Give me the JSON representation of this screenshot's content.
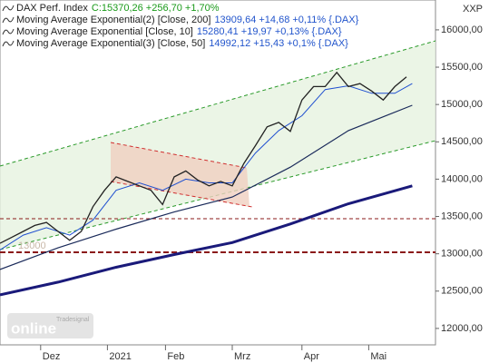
{
  "chart_data": {
    "type": "line",
    "axis_unit": "XXP",
    "annotation": "13000",
    "watermark": {
      "brand": "Tradesignal",
      "name": "online"
    },
    "xlim": [
      0,
      150
    ],
    "xticks": [
      {
        "value": 14,
        "label": "Dez"
      },
      {
        "value": 37,
        "label": "2021"
      },
      {
        "value": 57,
        "label": "Feb"
      },
      {
        "value": 80,
        "label": "Mrz"
      },
      {
        "value": 104,
        "label": "Apr"
      },
      {
        "value": 127,
        "label": "Mai"
      }
    ],
    "ylim": [
      11780,
      16400
    ],
    "yticks": [
      {
        "value": 12000,
        "label": "12000,00"
      },
      {
        "value": 12500,
        "label": "12500,00"
      },
      {
        "value": 13000,
        "label": "13000,00"
      },
      {
        "value": 13500,
        "label": "13500,00"
      },
      {
        "value": 14000,
        "label": "14000,00"
      },
      {
        "value": 14500,
        "label": "14500,00"
      },
      {
        "value": 15000,
        "label": "15000,00"
      },
      {
        "value": 15500,
        "label": "15500,00"
      },
      {
        "value": 16000,
        "label": "16000,00"
      }
    ],
    "series": [
      {
        "name": "DAX Perf. Index",
        "stats": "C:15370,26 +256,70 +1,70%",
        "stats_color": "#1a9a1a",
        "color": "#222222",
        "line_width": 1.3,
        "x": [
          0,
          4,
          8,
          12,
          16,
          20,
          24,
          28,
          32,
          36,
          40,
          44,
          48,
          52,
          56,
          60,
          64,
          68,
          72,
          76,
          80,
          84,
          88,
          92,
          96,
          100,
          104,
          108,
          112,
          116,
          120,
          124,
          128,
          132,
          136,
          140
        ],
        "values": [
          13140,
          13220,
          13300,
          13380,
          13420,
          13300,
          13180,
          13300,
          13630,
          13850,
          14030,
          13970,
          13910,
          13850,
          13660,
          14030,
          14110,
          13990,
          13910,
          13970,
          13910,
          14210,
          14450,
          14700,
          14760,
          14640,
          15060,
          15240,
          15240,
          15430,
          15240,
          15280,
          15180,
          15060,
          15240,
          15370
        ]
      },
      {
        "name": "Moving Average Exponential(2) [Close, 200]",
        "stats": "13909,64 +14,68 +0,11% {.DAX}",
        "stats_color": "#2255cc",
        "color": "#1a1a7a",
        "line_width": 3,
        "x": [
          0,
          20,
          40,
          60,
          80,
          100,
          120,
          142
        ],
        "values": [
          12450,
          12620,
          12820,
          12990,
          13150,
          13400,
          13670,
          13910
        ]
      },
      {
        "name": "Moving Average Exponential [Close, 10]",
        "stats": "15280,41 +19,97 +0,13% {.DAX}",
        "stats_color": "#2255cc",
        "color": "#1f4fd0",
        "line_width": 1,
        "x": [
          0,
          8,
          16,
          24,
          32,
          40,
          48,
          56,
          64,
          72,
          80,
          88,
          96,
          104,
          112,
          120,
          128,
          136,
          142
        ],
        "values": [
          13050,
          13250,
          13350,
          13250,
          13450,
          13850,
          13950,
          13850,
          14000,
          13950,
          13950,
          14350,
          14650,
          14850,
          15200,
          15250,
          15150,
          15150,
          15280
        ]
      },
      {
        "name": "Moving Average Exponential(3) [Close, 50]",
        "stats": "14992,12 +15,43 +0,1% {.DAX}",
        "stats_color": "#2255cc",
        "color": "#1a2a5a",
        "line_width": 1.2,
        "x": [
          0,
          20,
          40,
          60,
          80,
          100,
          120,
          142
        ],
        "values": [
          12790,
          13080,
          13330,
          13560,
          13760,
          14160,
          14650,
          14990
        ]
      }
    ]
  }
}
